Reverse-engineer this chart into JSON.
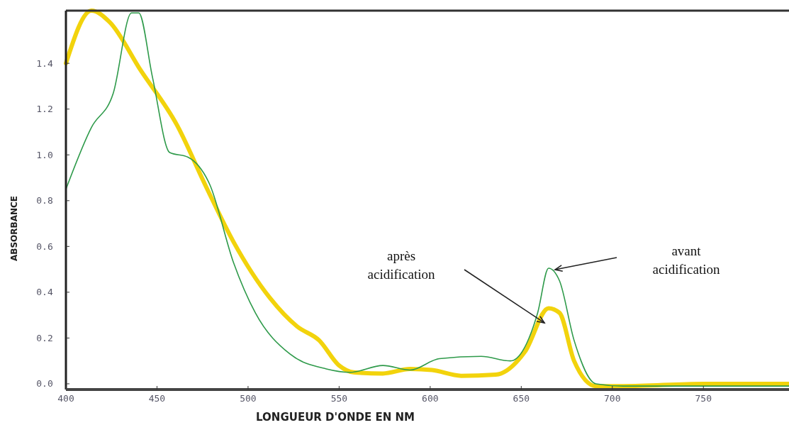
{
  "chart_data": {
    "type": "line",
    "xlabel": "LONGUEUR D'ONDE EN NM",
    "ylabel": "ABSORBANCE",
    "xlim": [
      400,
      797
    ],
    "ylim": [
      -0.025,
      1.63
    ],
    "xticks": [
      400,
      450,
      500,
      550,
      600,
      650,
      700,
      750
    ],
    "yticks": [
      {
        "value": 0,
        "label": "0.0"
      },
      {
        "value": 0.2,
        "label": "0.2"
      },
      {
        "value": 0.4,
        "label": "0.4"
      },
      {
        "value": 0.6,
        "label": "0.6"
      },
      {
        "value": 0.8,
        "label": "0.8"
      },
      {
        "value": 1,
        "label": "1.0"
      },
      {
        "value": 1.2,
        "label": "1.2"
      },
      {
        "value": 1.4,
        "label": "1.4"
      }
    ],
    "grid": false,
    "line_style": "solid",
    "series": [
      {
        "color": "#f2d30c",
        "x": [
          400,
          414,
          424,
          441,
          461,
          477,
          492,
          512,
          527,
          539,
          550,
          558,
          574,
          589,
          601,
          617,
          636,
          652,
          665,
          671,
          679,
          691,
          706,
          750,
          797
        ],
        "values": [
          1.4,
          1.63,
          1.58,
          1.37,
          1.13,
          0.86,
          0.62,
          0.375,
          0.25,
          0.19,
          0.08,
          0.05,
          0.045,
          0.065,
          0.06,
          0.035,
          0.04,
          0.14,
          0.33,
          0.31,
          0.1,
          -0.01,
          -0.01,
          0,
          0
        ]
      },
      {
        "color": "#2e9a4a",
        "x": [
          400,
          414,
          426,
          436,
          440,
          447.5,
          457,
          467,
          479,
          492,
          504,
          523,
          543,
          556,
          574,
          589,
          605,
          628,
          644,
          659,
          665,
          671,
          679,
          691,
          706,
          750,
          797
        ],
        "values": [
          0.85,
          1.12,
          1.27,
          1.62,
          1.62,
          1.34,
          1.01,
          0.99,
          0.87,
          0.53,
          0.31,
          0.13,
          0.065,
          0.05,
          0.08,
          0.06,
          0.11,
          0.12,
          0.1,
          0.31,
          0.505,
          0.45,
          0.19,
          0,
          -0.01,
          -0.01,
          -0.01
        ]
      }
    ],
    "annotations": [
      "après\nacidification",
      "avant\nacidification"
    ]
  }
}
